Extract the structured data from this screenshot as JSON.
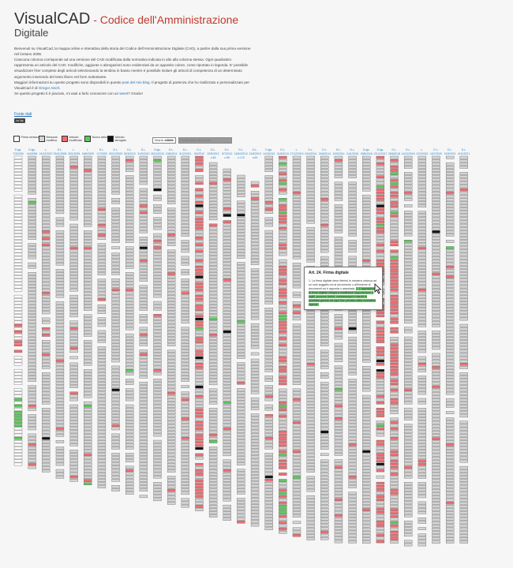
{
  "header": {
    "title_main": "VisualCAD",
    "title_dash": " - Codice dell'Amministrazione",
    "title_line2": "Digitale"
  },
  "intro": {
    "p1_before": "Benvenuti su VisualCad, la mappa online e interattiva della storia del Codice dell'Amministrazione Digitale (CAD), a partire dalla sua prima versione nel lontano 2005.",
    "p2": "Ciascuna colonna corrisponde ad una versione del CAD modificata dalla normativa indicata in alto alla colonna stessa. Ogni quadratino rappresenta un articolo del CAD: modifiche, aggiunte o abrogazioni sono evidenziati da un apposito colore, come riportato in legenda. E' possibile visualizzare l'iter completo degli articoli selezionando la tendina in basso mentre è possibile isolare gli articoli di competenza di un determinato argomento inserendo del testo libero nel form sottostante.",
    "p3_before": "Maggiori informazioni su questo progetto sono disponibili in questo ",
    "p3_link1": "post del mio blog",
    "p3_mid": ". Il progetto di partenza che ho riutilizzato e personalizzato per VisualCad è di ",
    "p3_link2": "Gregor Aisch",
    "p3_end": ".",
    "p4_before": "Se questo progetto ti è piaciuto, mi aiuti a farlo conoscere con un ",
    "p4_link": "tweet",
    "p4_end": "? Grazie!",
    "source_link": "Fonte dati",
    "cc_badge": "cc by"
  },
  "legend": {
    "items": [
      {
        "label": "Prima versione",
        "color": "#ffffff"
      },
      {
        "label": "Nessuna modifica",
        "color": "#d4d4d4"
      },
      {
        "label": "Articolo modificato",
        "color": "#ee6e73"
      },
      {
        "label": "Nuovo articolo",
        "color": "#5cc95c"
      },
      {
        "label": "Articolo abrogato",
        "color": "#111111"
      }
    ],
    "search_button": "Search articolo",
    "search_count": "100%",
    "search_placeholder": "Inserisci testo da cercare"
  },
  "columns": [
    {
      "l1": "D.lgs.",
      "l2": "7/3/2005",
      "l3": "n.82"
    },
    {
      "l1": "D.lgs.",
      "l2": "4/4/2006",
      "l3": "n.159"
    },
    {
      "l1": "L.",
      "l2": "24/12/2007",
      "l3": "n.244"
    },
    {
      "l1": "D.L.",
      "l2": "29/11/2008",
      "l3": "n.185"
    },
    {
      "l1": "L.",
      "l2": "28/1/2009",
      "l3": "n.2"
    },
    {
      "l1": "L.",
      "l2": "18/6/2009",
      "l3": "n.69"
    },
    {
      "l1": "D.L.",
      "l2": "1/7/2009",
      "l3": "n.78"
    },
    {
      "l1": "D.L.",
      "l2": "30/12/2009",
      "l3": "n.194"
    },
    {
      "l1": "D.L.",
      "l2": "25/3/2010",
      "l3": "n.40"
    },
    {
      "l1": "D.L.",
      "l2": "31/5/2010",
      "l3": "n.78"
    },
    {
      "l1": "D.lgs.",
      "l2": "30/12/2010",
      "l3": "n.235"
    },
    {
      "l1": "D.L.",
      "l2": "13/5/2011",
      "l3": "n.70"
    },
    {
      "l1": "D.L.",
      "l2": "6/12/2011",
      "l3": "n.201"
    },
    {
      "l1": "D.L.",
      "l2": "9/2/2012",
      "l3": "n.5"
    },
    {
      "l1": "D.L.",
      "l2": "22/6/2012",
      "l3": "n.83"
    },
    {
      "l1": "D.L.",
      "l2": "6/7/2012",
      "l3": "n.95"
    },
    {
      "l1": "D.L.",
      "l2": "18/10/2012",
      "l3": "n.179"
    },
    {
      "l1": "D.L.",
      "l2": "21/6/2013",
      "l3": "n.69"
    },
    {
      "l1": "D.lgs.",
      "l2": "14/3/2013",
      "l3": "n.33"
    },
    {
      "l1": "D.L.",
      "l2": "31/8/2013",
      "l3": "n.101"
    },
    {
      "l1": "L.",
      "l2": "27/12/2013",
      "l3": "n.147"
    },
    {
      "l1": "D.L.",
      "l2": "24/4/2014",
      "l3": "n.66"
    },
    {
      "l1": "D.L.",
      "l2": "24/6/2014",
      "l3": "n.90"
    },
    {
      "l1": "D.L.",
      "l2": "12/9/2014",
      "l3": "n.133"
    },
    {
      "l1": "D.L.",
      "l2": "24/1/2015",
      "l3": "n.3"
    },
    {
      "l1": "D.lgs.",
      "l2": "26/8/2016",
      "l3": "n.179"
    },
    {
      "l1": "D.lgs.",
      "l2": "13/12/2017",
      "l3": "n.217"
    },
    {
      "l1": "D.L.",
      "l2": "28/6/2018",
      "l3": "n.148"
    },
    {
      "l1": "D.L.",
      "l2": "14/12/2018",
      "l3": "n.135"
    },
    {
      "l1": "L.",
      "l2": "12/2/2019",
      "l3": "n.12"
    },
    {
      "l1": "D.L.",
      "l2": "16/7/2020",
      "l3": "n.76"
    },
    {
      "l1": "D.L.",
      "l2": "31/5/2021",
      "l3": "n.77"
    },
    {
      "l1": "D.L.",
      "l2": "6/11/2021",
      "l3": "n.152"
    }
  ],
  "tooltip": {
    "title": "Art. 24. Firma digitale",
    "body_1": "1. La firma digitale deve riferirsi in maniera univoca ad un solo soggetto ed al documento o all'insieme di documenti cui è apposta o associata.",
    "body_2": "2. L'apposizione di firma digitale integra e sostituisce l'apposizione di sigilli, punzoni, timbri, contrassegni e marchi di qualsiasi genere ad ogni fine previsto dalla normativa vigente."
  },
  "colors": {
    "first": "#ffffff",
    "unchanged": "#d4d4d4",
    "modified": "#ee6e73",
    "new": "#5cc95c",
    "abrogated": "#111111",
    "border": "#555555",
    "link": "#1d6fb8"
  }
}
